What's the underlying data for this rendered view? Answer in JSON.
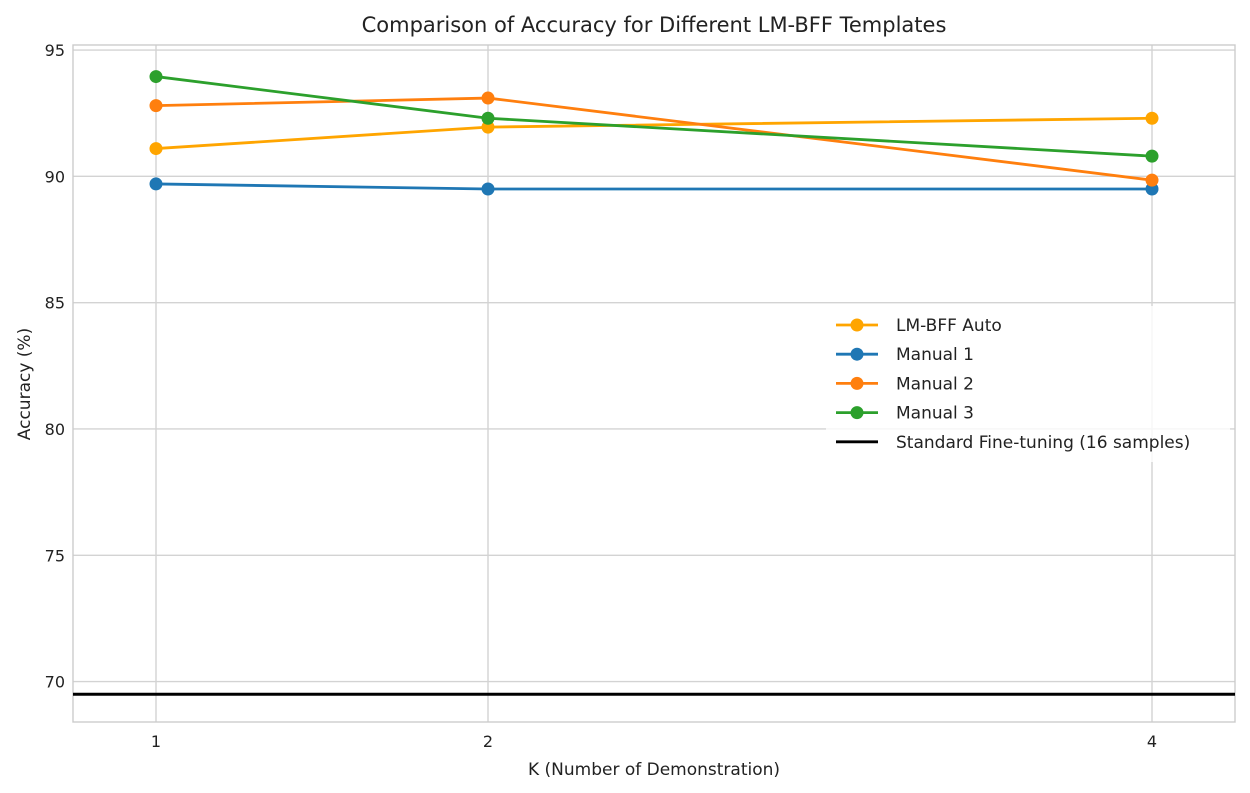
{
  "chart_data": {
    "type": "line",
    "title": "Comparison of Accuracy for Different LM-BFF Templates",
    "xlabel": "K (Number of Demonstration)",
    "ylabel": "Accuracy (%)",
    "x": [
      1,
      2,
      4
    ],
    "x_ticks": [
      "1",
      "2",
      "4"
    ],
    "xlim": [
      0.75,
      4.25
    ],
    "y_ticks": [
      "70",
      "75",
      "80",
      "85",
      "90",
      "95"
    ],
    "ylim": [
      68.4,
      95.2
    ],
    "grid": true,
    "legend_position": "center-right",
    "series": [
      {
        "name": "LM-BFF Auto",
        "color": "#ffa500",
        "values": [
          91.1,
          91.95,
          92.3
        ]
      },
      {
        "name": "Manual 1",
        "color": "#1f77b4",
        "values": [
          89.7,
          89.5,
          89.5
        ]
      },
      {
        "name": "Manual 2",
        "color": "#ff7f0e",
        "values": [
          92.8,
          93.1,
          89.85
        ]
      },
      {
        "name": "Manual 3",
        "color": "#2ca02c",
        "values": [
          93.95,
          92.3,
          90.8
        ]
      }
    ],
    "reference_lines": [
      {
        "name": "Standard Fine-tuning (16 samples)",
        "color": "#000000",
        "y": 69.5
      }
    ]
  }
}
